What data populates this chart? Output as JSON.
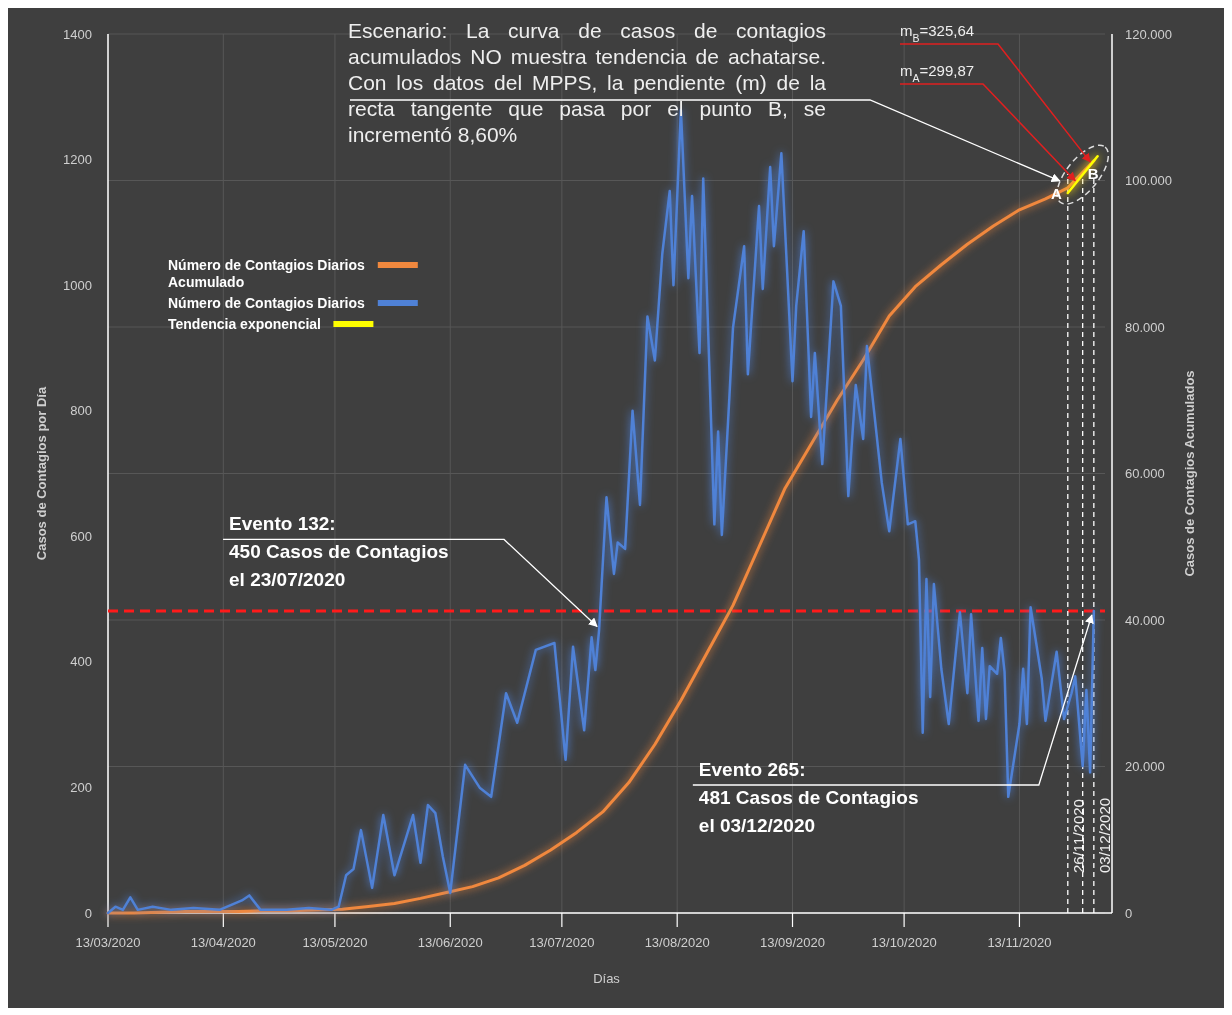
{
  "chart_data": {
    "type": "line",
    "xlabel": "Días",
    "ylabel": "Casos de Contagios por Día",
    "y2label": "Casos de Contagios Acumulados",
    "xlim": [
      "2020-03-13",
      "2020-12-06"
    ],
    "xticks": [
      {
        "value": "2020-03-13",
        "label": "13/03/2020"
      },
      {
        "value": "2020-04-13",
        "label": "13/04/2020"
      },
      {
        "value": "2020-05-13",
        "label": "13/05/2020"
      },
      {
        "value": "2020-06-13",
        "label": "13/06/2020"
      },
      {
        "value": "2020-07-13",
        "label": "13/07/2020"
      },
      {
        "value": "2020-08-13",
        "label": "13/08/2020"
      },
      {
        "value": "2020-09-13",
        "label": "13/09/2020"
      },
      {
        "value": "2020-10-13",
        "label": "13/10/2020"
      },
      {
        "value": "2020-11-13",
        "label": "13/11/2020"
      }
    ],
    "ylim": [
      0,
      1400
    ],
    "yticks": [
      0,
      200,
      400,
      600,
      800,
      1000,
      1200,
      1400
    ],
    "y2lim": [
      0,
      120000
    ],
    "y2ticks": [
      0,
      {
        "value": 20000,
        "label": "20.000"
      },
      {
        "value": 40000,
        "label": "40.000"
      },
      {
        "value": 60000,
        "label": "60.000"
      },
      {
        "value": 80000,
        "label": "80.000"
      },
      {
        "value": 100000,
        "label": "100.000"
      },
      {
        "value": 120000,
        "label": "120.000"
      }
    ],
    "grid": true,
    "legend": "left",
    "line_style": "solid",
    "marker": "none",
    "series": [
      {
        "name": "Número de Contagios Diarios Acumulado",
        "color": "#f0883e",
        "axis": "y2",
        "x": [
          "2020-03-13",
          "2020-03-20",
          "2020-03-27",
          "2020-04-03",
          "2020-04-10",
          "2020-04-17",
          "2020-04-24",
          "2020-05-01",
          "2020-05-08",
          "2020-05-15",
          "2020-05-22",
          "2020-05-29",
          "2020-06-05",
          "2020-06-12",
          "2020-06-19",
          "2020-06-26",
          "2020-07-03",
          "2020-07-10",
          "2020-07-17",
          "2020-07-24",
          "2020-07-31",
          "2020-08-07",
          "2020-08-14",
          "2020-08-21",
          "2020-08-28",
          "2020-09-04",
          "2020-09-11",
          "2020-09-18",
          "2020-09-25",
          "2020-10-02",
          "2020-10-09",
          "2020-10-16",
          "2020-10-23",
          "2020-10-30",
          "2020-11-06",
          "2020-11-13",
          "2020-11-20",
          "2020-11-26",
          "2020-12-03"
        ],
        "values": [
          0,
          0,
          100,
          200,
          200,
          200,
          300,
          300,
          400,
          500,
          900,
          1300,
          2000,
          2800,
          3600,
          4800,
          6500,
          8600,
          11000,
          13800,
          17800,
          23000,
          29000,
          35500,
          42000,
          50000,
          58000,
          64000,
          70000,
          75500,
          81500,
          85500,
          88500,
          91300,
          93800,
          96000,
          97500,
          99000,
          102700
        ]
      },
      {
        "name": "Número de Contagios Diarios",
        "color": "#4f81d6",
        "axis": "y",
        "x": [
          "2020-03-13",
          "2020-03-15",
          "2020-03-17",
          "2020-03-19",
          "2020-03-21",
          "2020-03-25",
          "2020-03-30",
          "2020-04-05",
          "2020-04-12",
          "2020-04-18",
          "2020-04-20",
          "2020-04-23",
          "2020-04-30",
          "2020-05-06",
          "2020-05-12",
          "2020-05-14",
          "2020-05-16",
          "2020-05-18",
          "2020-05-20",
          "2020-05-23",
          "2020-05-26",
          "2020-05-29",
          "2020-06-03",
          "2020-06-05",
          "2020-06-07",
          "2020-06-09",
          "2020-06-11",
          "2020-06-13",
          "2020-06-17",
          "2020-06-21",
          "2020-06-24",
          "2020-06-28",
          "2020-07-01",
          "2020-07-06",
          "2020-07-11",
          "2020-07-14",
          "2020-07-16",
          "2020-07-19",
          "2020-07-21",
          "2020-07-22",
          "2020-07-23",
          "2020-07-25",
          "2020-07-27",
          "2020-07-28",
          "2020-07-30",
          "2020-08-01",
          "2020-08-03",
          "2020-08-05",
          "2020-08-07",
          "2020-08-09",
          "2020-08-11",
          "2020-08-12",
          "2020-08-14",
          "2020-08-16",
          "2020-08-17",
          "2020-08-19",
          "2020-08-20",
          "2020-08-23",
          "2020-08-24",
          "2020-08-25",
          "2020-08-27",
          "2020-08-28",
          "2020-08-31",
          "2020-09-01",
          "2020-09-04",
          "2020-09-05",
          "2020-09-07",
          "2020-09-08",
          "2020-09-10",
          "2020-09-13",
          "2020-09-14",
          "2020-09-16",
          "2020-09-18",
          "2020-09-19",
          "2020-09-21",
          "2020-09-24",
          "2020-09-26",
          "2020-09-28",
          "2020-09-30",
          "2020-10-02",
          "2020-10-03",
          "2020-10-05",
          "2020-10-07",
          "2020-10-09",
          "2020-10-12",
          "2020-10-14",
          "2020-10-16",
          "2020-10-17",
          "2020-10-18",
          "2020-10-19",
          "2020-10-20",
          "2020-10-21",
          "2020-10-23",
          "2020-10-25",
          "2020-10-27",
          "2020-10-28",
          "2020-10-30",
          "2020-10-31",
          "2020-11-02",
          "2020-11-03",
          "2020-11-04",
          "2020-11-05",
          "2020-11-07",
          "2020-11-08",
          "2020-11-09",
          "2020-11-10",
          "2020-11-13",
          "2020-11-14",
          "2020-11-15",
          "2020-11-16",
          "2020-11-19",
          "2020-11-20",
          "2020-11-23",
          "2020-11-25",
          "2020-11-27",
          "2020-11-28",
          "2020-11-30",
          "2020-12-01",
          "2020-12-02",
          "2020-12-03"
        ],
        "values": [
          0,
          10,
          5,
          25,
          5,
          10,
          5,
          8,
          5,
          20,
          28,
          5,
          5,
          8,
          5,
          10,
          60,
          70,
          132,
          40,
          156,
          60,
          156,
          80,
          172,
          159,
          90,
          32,
          236,
          199,
          185,
          350,
          303,
          419,
          430,
          244,
          424,
          291,
          439,
          387,
          450,
          662,
          540,
          590,
          580,
          800,
          650,
          950,
          880,
          1050,
          1150,
          1000,
          1279,
          1011,
          1142,
          892,
          1170,
          619,
          767,
          602,
          818,
          932,
          1062,
          858,
          1126,
          994,
          1188,
          1062,
          1210,
          847,
          967,
          1086,
          790,
          892,
          715,
          1006,
          967,
          664,
          841,
          755,
          903,
          795,
          685,
          608,
          755,
          619,
          624,
          562,
          287,
          532,
          344,
          524,
          389,
          301,
          422,
          479,
          350,
          476,
          306,
          422,
          309,
          393,
          381,
          438,
          384,
          185,
          301,
          389,
          301,
          487,
          373,
          306,
          416,
          309,
          350,
          377,
          234,
          355,
          224,
          481
        ]
      },
      {
        "name": "Tendencia exponencial",
        "color": "#ffff00",
        "axis": "y2",
        "x": [
          "2020-11-26",
          "2020-12-04"
        ],
        "values": [
          98300,
          103300
        ]
      }
    ],
    "ref_lines": [
      {
        "axis": "y",
        "value": 481,
        "color": "#ff1a1a",
        "line_style": "dashed"
      },
      {
        "axis": "x",
        "value": "2020-11-26",
        "label": "26/11/2020",
        "color": "#ffffff",
        "line_style": "dashed"
      },
      {
        "axis": "x",
        "value": "2020-11-30",
        "color": "#ffffff",
        "line_style": "dashed"
      },
      {
        "axis": "x",
        "value": "2020-12-03",
        "label": "03/12/2020",
        "color": "#ffffff",
        "line_style": "dashed"
      }
    ],
    "annotations": [
      "Escenario: La curva de casos de contagios acumulados NO muestra tendencia de achatarse. Con los datos del MPPS, la pendiente (m) de la recta tangente que pasa por el punto B, se incrementó 8,60%",
      "A",
      "B",
      {
        "text": "m$_{B}$=325,64",
        "x": "2020-12-02",
        "y": 1190
      },
      {
        "text": "m$_{A}$=299,87",
        "x": "2020-11-28",
        "y": 1160
      },
      {
        "text": "Evento 132:\n450 Casos de Contagios\nel 23/07/2020",
        "x": "2020-07-23",
        "y": 450
      },
      {
        "text": "Evento 265:\n481 Casos de Contagios\nel 03/12/2020",
        "x": "2020-12-03",
        "y": 481
      }
    ]
  }
}
